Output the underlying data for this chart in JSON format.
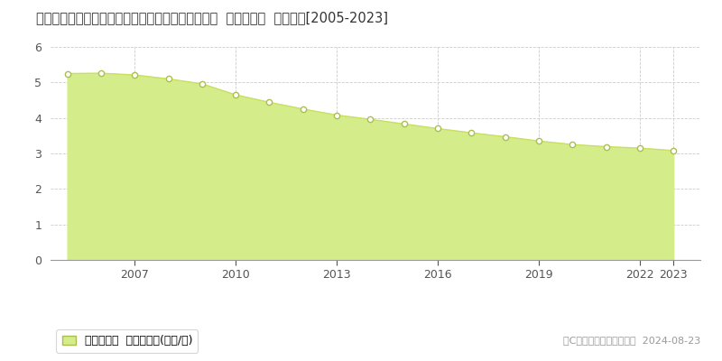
{
  "title": "鴥取県東伯郡琴浦町大字八幡字馬場ノ西７６１番５  基準地価格  地価推移[2005-2023]",
  "years": [
    2005,
    2006,
    2007,
    2008,
    2009,
    2010,
    2011,
    2012,
    2013,
    2014,
    2015,
    2016,
    2017,
    2018,
    2019,
    2020,
    2021,
    2022,
    2023
  ],
  "values": [
    5.25,
    5.26,
    5.21,
    5.1,
    4.96,
    4.65,
    4.44,
    4.25,
    4.08,
    3.96,
    3.83,
    3.7,
    3.58,
    3.47,
    3.35,
    3.25,
    3.19,
    3.15,
    3.08
  ],
  "ylim": [
    0,
    6
  ],
  "yticks": [
    0,
    1,
    2,
    3,
    4,
    5,
    6
  ],
  "xticks": [
    2007,
    2010,
    2013,
    2016,
    2019,
    2022,
    2023
  ],
  "xlim_left": 2004.5,
  "xlim_right": 2023.8,
  "fill_color": "#d4ed8a",
  "line_color": "#c8e060",
  "marker_facecolor": "#ffffff",
  "marker_edgecolor": "#aabf50",
  "bg_color": "#ffffff",
  "plot_bg_color": "#ffffff",
  "grid_color": "#cccccc",
  "legend_label": "基準地価格  平均坪単価(万円/坪)",
  "copyright_text": "（C）土地価格ドットコム  2024-08-23",
  "title_fontsize": 10.5,
  "axis_fontsize": 9,
  "legend_fontsize": 9,
  "copyright_fontsize": 8
}
